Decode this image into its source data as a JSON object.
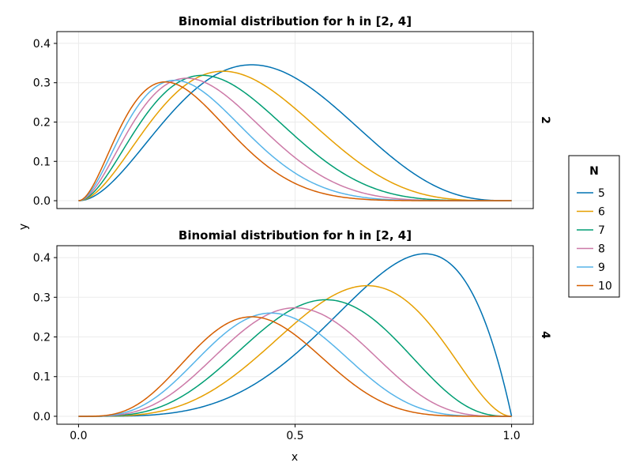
{
  "chart_data": {
    "type": "line",
    "xlabel": "x",
    "ylabel": "y",
    "legend": {
      "title": "N",
      "placement": "right",
      "entries": [
        "5",
        "6",
        "7",
        "8",
        "9",
        "10"
      ]
    },
    "colors": [
      "#0072B2",
      "#E69F00",
      "#009E73",
      "#CC79A7",
      "#56B4E9",
      "#D55E00"
    ],
    "grid": true,
    "xlim": [
      -0.05,
      1.05
    ],
    "xticks": [
      {
        "value": 0.0,
        "label": "0.0"
      },
      {
        "value": 0.5,
        "label": "0.5"
      },
      {
        "value": 1.0,
        "label": "1.0"
      }
    ],
    "panels": [
      {
        "title": "Binomial distribution for h in [2, 4]",
        "facet_label": "2",
        "h": 2,
        "ylim": [
          -0.02,
          0.43
        ],
        "yticks": [
          {
            "value": 0.0,
            "label": "0.0"
          },
          {
            "value": 0.1,
            "label": "0.1"
          },
          {
            "value": 0.2,
            "label": "0.2"
          },
          {
            "value": 0.3,
            "label": "0.3"
          },
          {
            "value": 0.4,
            "label": "0.4"
          }
        ],
        "series": [
          {
            "name": "5",
            "x": [
              0.0,
              0.1,
              0.2,
              0.3,
              0.4,
              0.5,
              0.6,
              0.7,
              0.8,
              0.9,
              1.0
            ],
            "y": [
              0.0,
              0.0729,
              0.2048,
              0.3087,
              0.3456,
              0.3125,
              0.2304,
              0.1323,
              0.0512,
              0.0081,
              0.0
            ]
          },
          {
            "name": "6",
            "x": [
              0.0,
              0.1,
              0.2,
              0.3,
              0.4,
              0.5,
              0.6,
              0.7,
              0.8,
              0.9,
              1.0
            ],
            "y": [
              0.0,
              0.0984,
              0.2458,
              0.3241,
              0.311,
              0.2344,
              0.1382,
              0.0595,
              0.0154,
              0.0012,
              0.0
            ]
          },
          {
            "name": "7",
            "x": [
              0.0,
              0.1,
              0.2,
              0.3,
              0.4,
              0.5,
              0.6,
              0.7,
              0.8,
              0.9,
              1.0
            ],
            "y": [
              0.0,
              0.124,
              0.2753,
              0.3177,
              0.2613,
              0.1641,
              0.0774,
              0.025,
              0.0043,
              0.0002,
              0.0
            ]
          },
          {
            "name": "8",
            "x": [
              0.0,
              0.1,
              0.2,
              0.3,
              0.4,
              0.5,
              0.6,
              0.7,
              0.8,
              0.9,
              1.0
            ],
            "y": [
              0.0,
              0.1488,
              0.2936,
              0.2965,
              0.209,
              0.1094,
              0.0413,
              0.01,
              0.0011,
              0.0,
              0.0
            ]
          },
          {
            "name": "9",
            "x": [
              0.0,
              0.1,
              0.2,
              0.3,
              0.4,
              0.5,
              0.6,
              0.7,
              0.8,
              0.9,
              1.0
            ],
            "y": [
              0.0,
              0.1722,
              0.302,
              0.2668,
              0.1612,
              0.0703,
              0.0212,
              0.0039,
              0.0003,
              0.0,
              0.0
            ]
          },
          {
            "name": "10",
            "x": [
              0.0,
              0.1,
              0.2,
              0.3,
              0.4,
              0.5,
              0.6,
              0.7,
              0.8,
              0.9,
              1.0
            ],
            "y": [
              0.0,
              0.1937,
              0.302,
              0.2335,
              0.1209,
              0.0439,
              0.0106,
              0.0014,
              0.0001,
              0.0,
              0.0
            ]
          }
        ]
      },
      {
        "title": "Binomial distribution for h in [2, 4]",
        "facet_label": "4",
        "h": 4,
        "ylim": [
          -0.02,
          0.43
        ],
        "yticks": [
          {
            "value": 0.0,
            "label": "0.0"
          },
          {
            "value": 0.1,
            "label": "0.1"
          },
          {
            "value": 0.2,
            "label": "0.2"
          },
          {
            "value": 0.3,
            "label": "0.3"
          },
          {
            "value": 0.4,
            "label": "0.4"
          }
        ],
        "series": [
          {
            "name": "5",
            "x": [
              0.0,
              0.1,
              0.2,
              0.3,
              0.4,
              0.5,
              0.6,
              0.7,
              0.8,
              0.9,
              1.0
            ],
            "y": [
              0.0,
              0.0005,
              0.0064,
              0.0284,
              0.0768,
              0.1563,
              0.2592,
              0.3601,
              0.4096,
              0.3281,
              0.0
            ]
          },
          {
            "name": "6",
            "x": [
              0.0,
              0.1,
              0.2,
              0.3,
              0.4,
              0.5,
              0.6,
              0.7,
              0.8,
              0.9,
              1.0
            ],
            "y": [
              0.0,
              0.0012,
              0.0154,
              0.0595,
              0.1382,
              0.2344,
              0.311,
              0.3241,
              0.2458,
              0.0984,
              0.0
            ]
          },
          {
            "name": "7",
            "x": [
              0.0,
              0.1,
              0.2,
              0.3,
              0.4,
              0.5,
              0.6,
              0.7,
              0.8,
              0.9,
              1.0
            ],
            "y": [
              0.0,
              0.0026,
              0.0287,
              0.0972,
              0.1935,
              0.2734,
              0.2903,
              0.2269,
              0.1147,
              0.023,
              0.0
            ]
          },
          {
            "name": "8",
            "x": [
              0.0,
              0.1,
              0.2,
              0.3,
              0.4,
              0.5,
              0.6,
              0.7,
              0.8,
              0.9,
              1.0
            ],
            "y": [
              0.0,
              0.0046,
              0.0459,
              0.1361,
              0.2322,
              0.2734,
              0.2322,
              0.1361,
              0.0459,
              0.0046,
              0.0
            ]
          },
          {
            "name": "9",
            "x": [
              0.0,
              0.1,
              0.2,
              0.3,
              0.4,
              0.5,
              0.6,
              0.7,
              0.8,
              0.9,
              1.0
            ],
            "y": [
              0.0,
              0.0074,
              0.0661,
              0.1715,
              0.2508,
              0.2461,
              0.1672,
              0.0735,
              0.0165,
              0.0008,
              0.0
            ]
          },
          {
            "name": "10",
            "x": [
              0.0,
              0.1,
              0.2,
              0.3,
              0.4,
              0.5,
              0.6,
              0.7,
              0.8,
              0.9,
              1.0
            ],
            "y": [
              0.0,
              0.0112,
              0.0881,
              0.2001,
              0.2508,
              0.2051,
              0.1115,
              0.0368,
              0.0055,
              0.0001,
              0.0
            ]
          }
        ]
      }
    ]
  }
}
